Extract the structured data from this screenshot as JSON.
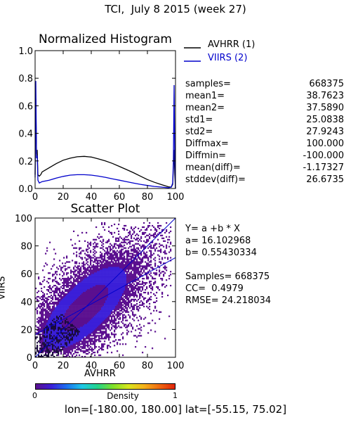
{
  "title": "TCI,  July 8 2015 (week 27)",
  "footer": "lon=[-180.00, 180.00] lat=[-55.15, 75.02]",
  "legend": [
    {
      "label": "AVHRR (1)",
      "color": "#000000"
    },
    {
      "label": "VIIRS (2)",
      "color": "#0000cc"
    }
  ],
  "stats": [
    {
      "label": "samples=",
      "value": "668375"
    },
    {
      "label": "mean1=",
      "value": "38.7623"
    },
    {
      "label": "mean2=",
      "value": "37.5890"
    },
    {
      "label": "std1=",
      "value": "25.0838"
    },
    {
      "label": "std2=",
      "value": "27.9243"
    },
    {
      "label": "Diffmax=",
      "value": "100.000"
    },
    {
      "label": "Diffmin=",
      "value": "-100.000"
    },
    {
      "label": "mean(diff)=",
      "value": "-1.17327"
    },
    {
      "label": "stddev(diff)=",
      "value": "26.6735"
    }
  ],
  "regression": {
    "equation": "Y= a +b * X",
    "a_text": "a= 16.102968",
    "b_text": "b= 0.55430334",
    "samples_text": "Samples= 668375",
    "cc_text": "CC=  0.4979",
    "rmse_text": "RMSE= 24.218034"
  },
  "colorbar": {
    "label": "Density",
    "min_label": "0",
    "max_label": "1",
    "colors": [
      "#5b0f8f",
      "#3b1fd8",
      "#1c70f0",
      "#1ec8e6",
      "#22d48a",
      "#7fe02a",
      "#d8e61e",
      "#f5b21a",
      "#f06a10",
      "#e0240a"
    ]
  },
  "chart_data": [
    {
      "type": "line",
      "title": "Normalized Histogram",
      "xlim": [
        0,
        100
      ],
      "ylim": [
        0,
        1.0
      ],
      "xticks": [
        0,
        20,
        40,
        60,
        80,
        100
      ],
      "yticks": [
        0.0,
        0.2,
        0.4,
        0.6,
        0.8,
        1.0
      ],
      "ytick_labels": [
        "0.0",
        "0.2",
        "0.4",
        "0.6",
        "0.8",
        "1.0"
      ],
      "series": [
        {
          "name": "AVHRR (1)",
          "color": "#000000",
          "x": [
            0,
            0.5,
            1,
            1.5,
            2,
            3,
            4,
            5,
            10,
            15,
            20,
            25,
            30,
            35,
            40,
            45,
            50,
            55,
            60,
            65,
            70,
            75,
            80,
            85,
            90,
            95,
            97,
            98,
            98.5,
            99,
            99.5,
            100
          ],
          "y": [
            0.1,
            0.65,
            0.25,
            0.28,
            0.1,
            0.09,
            0.1,
            0.12,
            0.15,
            0.18,
            0.205,
            0.22,
            0.23,
            0.233,
            0.228,
            0.215,
            0.2,
            0.182,
            0.16,
            0.138,
            0.115,
            0.09,
            0.065,
            0.045,
            0.028,
            0.012,
            0.01,
            0.03,
            0.15,
            0.28,
            0.1,
            0.0
          ]
        },
        {
          "name": "VIIRS (2)",
          "color": "#0000cc",
          "x": [
            0,
            0.5,
            1,
            1.5,
            2,
            3,
            4,
            5,
            10,
            15,
            20,
            25,
            30,
            35,
            40,
            45,
            50,
            55,
            60,
            65,
            70,
            75,
            80,
            85,
            90,
            95,
            97,
            98,
            98.5,
            99,
            99.5,
            100
          ],
          "y": [
            0.08,
            0.78,
            0.22,
            0.24,
            0.06,
            0.04,
            0.045,
            0.05,
            0.06,
            0.075,
            0.088,
            0.097,
            0.1,
            0.1,
            0.097,
            0.09,
            0.081,
            0.07,
            0.06,
            0.05,
            0.04,
            0.03,
            0.022,
            0.015,
            0.01,
            0.005,
            0.01,
            0.04,
            0.2,
            0.75,
            0.2,
            0.0
          ]
        }
      ]
    },
    {
      "type": "heatmap",
      "title": "Scatter Plot",
      "xlabel": "AVHRR",
      "ylabel": "VIIRS",
      "xlim": [
        0,
        100
      ],
      "ylim": [
        0,
        100
      ],
      "xticks": [
        0,
        20,
        40,
        60,
        80,
        100
      ],
      "yticks": [
        0,
        20,
        40,
        60,
        80,
        100
      ],
      "fit_line": {
        "a": 16.102968,
        "b": 0.55430334,
        "color": "#0000cc"
      },
      "diagonal_line": {
        "color": "#0000cc"
      },
      "grid_step": 5,
      "density_x_range": [
        0,
        95
      ],
      "density_y_range": [
        0,
        95
      ]
    }
  ]
}
